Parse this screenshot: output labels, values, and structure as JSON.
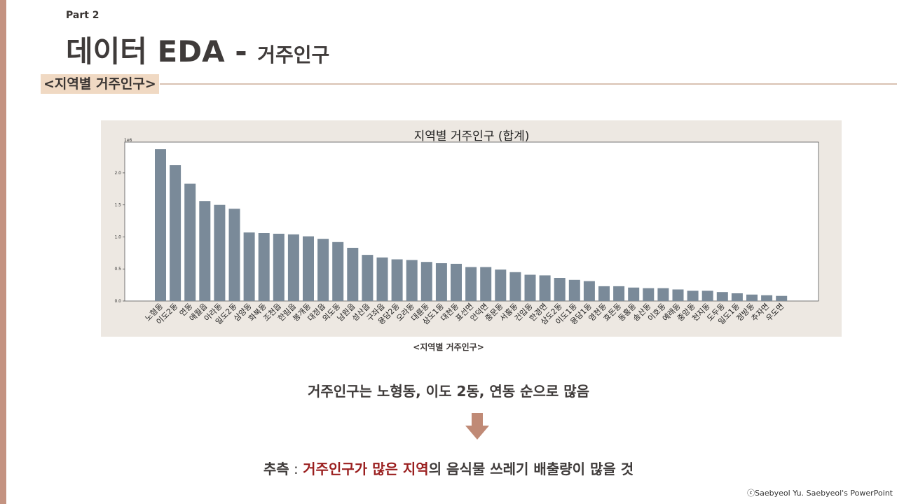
{
  "slide": {
    "part_label": "Part 2",
    "title_main": "데이터 EDA - ",
    "title_sub": "거주인구",
    "section_tag": "<지역별 거주인구>",
    "chart_caption": "<지역별 거주인구>",
    "finding": "거주인구는 노형동, 이도 2동, 연동 순으로 많음",
    "inference": {
      "label": "추측",
      "colon": " : ",
      "highlight": "거주인구가 많은 지역",
      "rest": "의 음식물 쓰레기 배출량이 많을 것"
    },
    "copyright": "ⓒSaebyeol Yu. Saebyeol's PowerPoint"
  },
  "colors": {
    "bar": "#7a8a99",
    "panel": "#ede8e2",
    "accent_bar": "#c49381",
    "highlight": "#9a1f1f",
    "arrow": "#c08a76",
    "tag_bg": "#f0d9c3"
  },
  "icons": {
    "arrow": "down-arrow-icon"
  },
  "chart_data": {
    "type": "bar",
    "title": "지역별 거주인구 (합계)",
    "scale_label": "1e6",
    "ylim": [
      0,
      2.48
    ],
    "yticks": [
      "0.0",
      "0.5",
      "1.0",
      "1.5",
      "2.0"
    ],
    "grid": false,
    "categories": [
      "노형동",
      "이도2동",
      "연동",
      "애월읍",
      "아라동",
      "일도2동",
      "삼양동",
      "화북동",
      "조천읍",
      "한림읍",
      "봉개동",
      "대정읍",
      "외도동",
      "남원읍",
      "성산읍",
      "구좌읍",
      "용담2동",
      "오라동",
      "대륜동",
      "삼도1동",
      "대천동",
      "표선면",
      "안덕면",
      "중문동",
      "서홍동",
      "건입동",
      "한경면",
      "삼도2동",
      "이도1동",
      "용담1동",
      "영천동",
      "효돈동",
      "동홍동",
      "송산동",
      "이호동",
      "예래동",
      "중앙동",
      "천지동",
      "도두동",
      "일도1동",
      "정방동",
      "추자면",
      "우도면"
    ],
    "values": [
      2.37,
      2.12,
      1.83,
      1.56,
      1.5,
      1.44,
      1.07,
      1.06,
      1.05,
      1.04,
      1.01,
      0.97,
      0.92,
      0.83,
      0.72,
      0.68,
      0.65,
      0.64,
      0.61,
      0.59,
      0.58,
      0.53,
      0.53,
      0.49,
      0.45,
      0.41,
      0.4,
      0.36,
      0.33,
      0.31,
      0.23,
      0.23,
      0.21,
      0.2,
      0.2,
      0.18,
      0.16,
      0.16,
      0.14,
      0.12,
      0.1,
      0.09,
      0.08
    ]
  }
}
